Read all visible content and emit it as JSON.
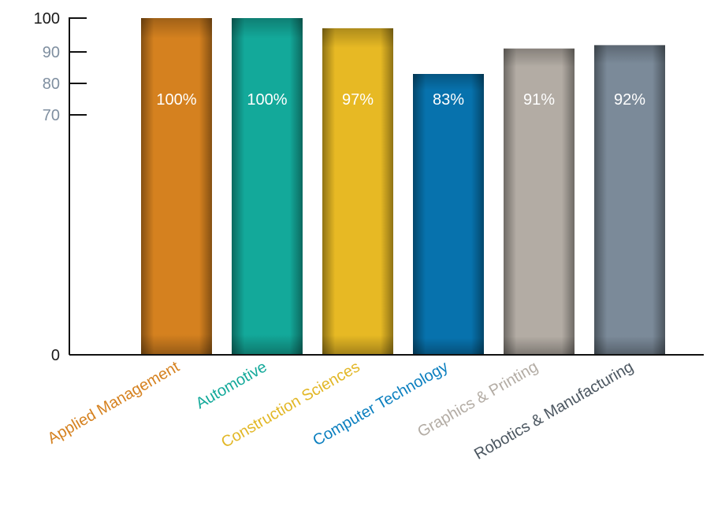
{
  "chart_data": {
    "type": "bar",
    "categories": [
      "Applied Management",
      "Automotive",
      "Construction Sciences",
      "Computer Technology",
      "Graphics & Printing",
      "Robotics & Manufacturing"
    ],
    "values": [
      100,
      100,
      97,
      83,
      91,
      92
    ],
    "value_labels": [
      "100%",
      "100%",
      "97%",
      "83%",
      "91%",
      "92%"
    ],
    "yticks": [
      {
        "value": 0,
        "label": "0",
        "color": "#1a1a1a"
      },
      {
        "value": 70,
        "label": "70",
        "color": "#7f8fa0"
      },
      {
        "value": 80,
        "label": "80",
        "color": "#7f8fa0"
      },
      {
        "value": 90,
        "label": "90",
        "color": "#7f8fa0"
      },
      {
        "value": 100,
        "label": "100",
        "color": "#1a1a1a"
      }
    ],
    "scale": "piecewise: 0-70 compressed, 70-100 expanded",
    "bar_colors": [
      "#d5811f",
      "#13a99a",
      "#e7b924",
      "#0772ad",
      "#b3aca4",
      "#7b8a99"
    ],
    "label_colors": [
      "#d5811f",
      "#13a99a",
      "#e2b726",
      "#0b7fbf",
      "#b3aca4",
      "#4b5660"
    ],
    "title": "",
    "xlabel": "",
    "ylabel": "",
    "ylim": [
      0,
      100
    ],
    "grid": false,
    "legend": false
  }
}
